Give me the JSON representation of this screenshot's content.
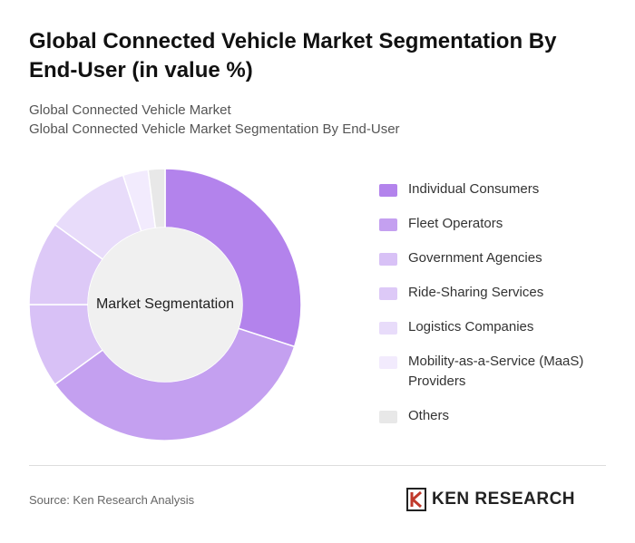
{
  "chart_data": {
    "type": "donut",
    "title": "Global Connected Vehicle Market Segmentation By End-User (in value %)",
    "subtitle": [
      "Global Connected Vehicle Market",
      "Global Connected Vehicle Market Segmentation By End-User"
    ],
    "center_label": "Market Segmentation",
    "categories": [
      "Individual Consumers",
      "Fleet Operators",
      "Government Agencies",
      "Ride-Sharing Services",
      "Logistics Companies",
      "Mobility-as-a-Service (MaaS) Providers",
      "Others"
    ],
    "values": [
      30,
      35,
      10,
      10,
      10,
      3,
      2
    ],
    "colors": [
      "#b383ec",
      "#c4a0f0",
      "#d8c1f6",
      "#ddc9f7",
      "#e8dcfa",
      "#f2ebfd",
      "#e8e8e8"
    ]
  },
  "footer": {
    "source": "Source: Ken Research Analysis",
    "logo": "KEN RESEARCH"
  }
}
